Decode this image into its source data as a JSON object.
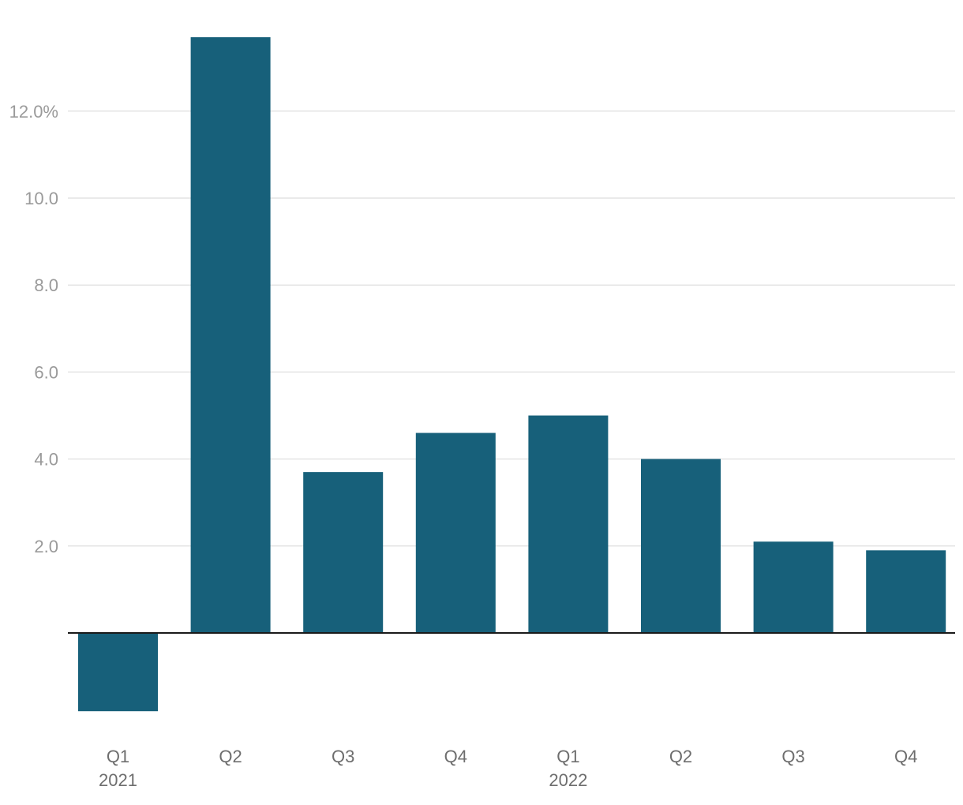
{
  "chart_data": {
    "type": "bar",
    "categories": [
      "Q1",
      "Q2",
      "Q3",
      "Q4",
      "Q1",
      "Q2",
      "Q3",
      "Q4"
    ],
    "category_groups": [
      {
        "label": "2021",
        "index": 0
      },
      {
        "label": "2022",
        "index": 4
      }
    ],
    "values": [
      -1.8,
      13.7,
      3.7,
      4.6,
      5.0,
      4.0,
      2.1,
      1.9
    ],
    "ylim": [
      -2.5,
      14.5
    ],
    "yticks": [
      {
        "value": 2,
        "label": "2.0"
      },
      {
        "value": 4,
        "label": "4.0"
      },
      {
        "value": 6,
        "label": "6.0"
      },
      {
        "value": 8,
        "label": "8.0"
      },
      {
        "value": 10,
        "label": "10.0"
      },
      {
        "value": 12,
        "label": "12.0%"
      }
    ],
    "title": "",
    "xlabel": "",
    "ylabel": "",
    "grid": true,
    "legend": "none",
    "colors": {
      "bar": "#17607a",
      "grid": "#e4e4e4",
      "zero_line": "#1a1a1a",
      "tick_text": "#9a9a9a",
      "category_text": "#6e6e6e"
    }
  }
}
